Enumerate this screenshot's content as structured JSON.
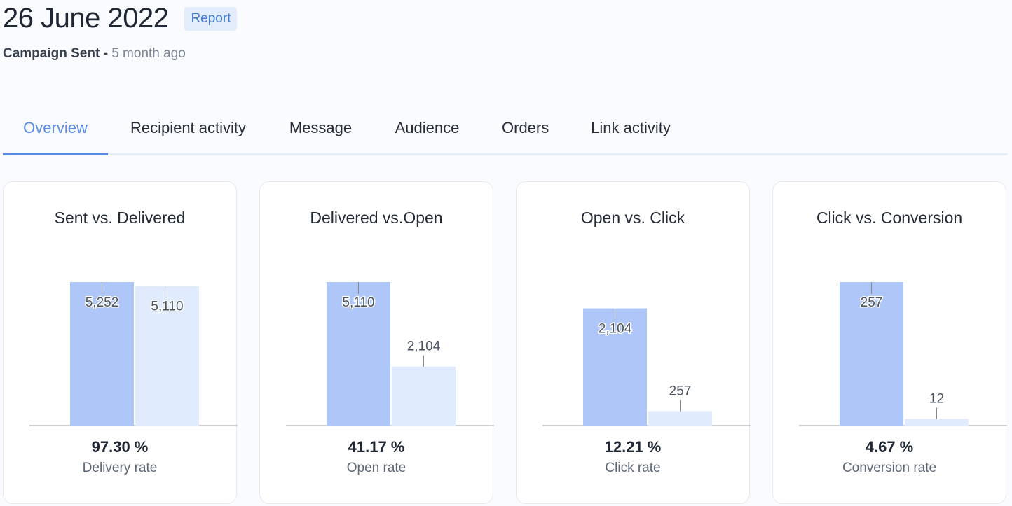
{
  "header": {
    "title": "26 June 2022",
    "badge": "Report",
    "status": "Campaign Sent",
    "separator": " - ",
    "ago": "5 month ago"
  },
  "tabs": [
    {
      "label": "Overview",
      "active": true
    },
    {
      "label": "Recipient activity",
      "active": false
    },
    {
      "label": "Message",
      "active": false
    },
    {
      "label": "Audience",
      "active": false
    },
    {
      "label": "Orders",
      "active": false
    },
    {
      "label": "Link activity",
      "active": false
    }
  ],
  "colors": {
    "primary_bar": "#aec6f8",
    "secondary_bar": "#e0ecfd",
    "accent": "#5a8be3"
  },
  "chart_data": [
    {
      "type": "bar",
      "title": "Sent vs. Delivered",
      "values": [
        5252,
        5110
      ],
      "value_labels": [
        "5,252",
        "5,110"
      ],
      "ylim": [
        0,
        5252
      ],
      "rate": "97.30 %",
      "rate_label": "Delivery rate"
    },
    {
      "type": "bar",
      "title": "Delivered vs.Open",
      "values": [
        5110,
        2104
      ],
      "value_labels": [
        "5,110",
        "2,104"
      ],
      "ylim": [
        0,
        5110
      ],
      "rate": "41.17 %",
      "rate_label": "Open rate"
    },
    {
      "type": "bar",
      "title": "Open vs. Click",
      "values": [
        2104,
        257
      ],
      "value_labels": [
        "2,104",
        "257"
      ],
      "ylim": [
        0,
        2576
      ],
      "rate": "12.21 %",
      "rate_label": "Click rate"
    },
    {
      "type": "bar",
      "title": "Click vs. Conversion",
      "values": [
        257,
        12
      ],
      "value_labels": [
        "257",
        "12"
      ],
      "ylim": [
        0,
        257
      ],
      "rate": "4.67 %",
      "rate_label": "Conversion rate"
    }
  ]
}
